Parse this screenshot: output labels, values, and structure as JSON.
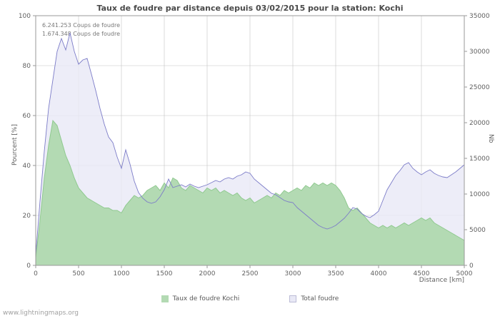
{
  "page": {
    "watermark": "www.lightningmaps.org"
  },
  "chart_data": {
    "type": "area",
    "title": "Taux de foudre par distance depuis 03/02/2015 pour la station: Kochi",
    "annotations": [
      "6.241.253  Coups de foudre",
      "1.674.348  Coups de foudre"
    ],
    "xlabel": "Distance   [km]",
    "ylabel_left": "Pourcent   [%]",
    "ylabel_right": "Nb",
    "grid": true,
    "legend_position": "bottom",
    "x_axis": {
      "min": 0,
      "max": 5000,
      "ticks": [
        0,
        500,
        1000,
        1500,
        2000,
        2500,
        3000,
        3500,
        4000,
        4500,
        5000
      ]
    },
    "y_axis_left": {
      "min": 0,
      "max": 100,
      "ticks": [
        0,
        20,
        40,
        60,
        80,
        100
      ]
    },
    "y_axis_right": {
      "min": 0,
      "max": 35000,
      "ticks": [
        0,
        5000,
        10000,
        15000,
        20000,
        25000,
        30000,
        35000
      ]
    },
    "x_start": 0,
    "x_step": 50,
    "colors": {
      "grid": "#c4c4c4",
      "frame": "#9a9a9a",
      "text": "#5f5f5f"
    },
    "series": [
      {
        "name": "Taux de foudre Kochi",
        "axis": "left",
        "fill": "#b3dab3",
        "stroke": "#8fc98f",
        "values": [
          3,
          18,
          35,
          48,
          58,
          56,
          50,
          44,
          40,
          35,
          31,
          29,
          27,
          26,
          25,
          24,
          23,
          23,
          22,
          22,
          21,
          24,
          26,
          28,
          27,
          28,
          30,
          31,
          32,
          30,
          33,
          31,
          35,
          34,
          31,
          30,
          32,
          31,
          30,
          29,
          31,
          30,
          31,
          29,
          30,
          29,
          28,
          29,
          27,
          26,
          27,
          25,
          26,
          27,
          28,
          27,
          29,
          28,
          30,
          29,
          30,
          31,
          30,
          32,
          31,
          33,
          32,
          33,
          32,
          33,
          32,
          30,
          27,
          23,
          22,
          23,
          21,
          19,
          17,
          16,
          15,
          16,
          15,
          16,
          15,
          16,
          17,
          16,
          17,
          18,
          19,
          18,
          19,
          17,
          16,
          15,
          14,
          13,
          12,
          11,
          10
        ]
      },
      {
        "name": "Total foudre",
        "axis": "right",
        "fill": "#e9e9f6",
        "stroke": "#7c7cc8",
        "values": [
          1500,
          9000,
          16000,
          22000,
          26000,
          30000,
          31800,
          30200,
          32600,
          30000,
          28200,
          28800,
          29000,
          26800,
          24500,
          22000,
          19800,
          18000,
          17200,
          15200,
          13600,
          16200,
          14200,
          11800,
          10200,
          9400,
          8900,
          8700,
          8900,
          9600,
          10600,
          12100,
          10900,
          11100,
          11300,
          11000,
          11400,
          11100,
          10900,
          11100,
          11300,
          11600,
          11900,
          11700,
          12100,
          12300,
          12100,
          12500,
          12700,
          13100,
          12900,
          12100,
          11600,
          11100,
          10600,
          10100,
          9900,
          9500,
          9100,
          8900,
          8800,
          8100,
          7600,
          7100,
          6600,
          6100,
          5600,
          5300,
          5100,
          5300,
          5600,
          6100,
          6600,
          7300,
          8100,
          7900,
          7300,
          6900,
          6700,
          7100,
          7600,
          9100,
          10600,
          11600,
          12600,
          13300,
          14100,
          14400,
          13600,
          13100,
          12700,
          13100,
          13400,
          12900,
          12600,
          12400,
          12300,
          12700,
          13100,
          13600,
          14100
        ]
      }
    ]
  }
}
